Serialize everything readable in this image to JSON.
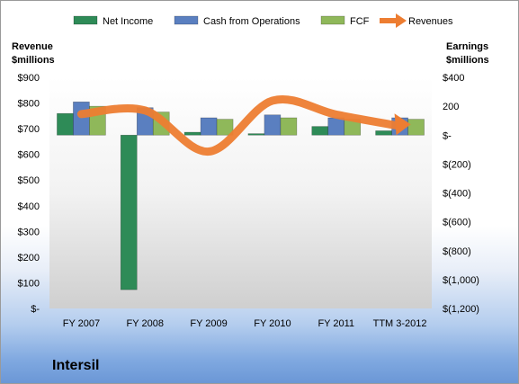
{
  "chart_data": {
    "type": "bar",
    "company": "Intersil",
    "categories": [
      "FY 2007",
      "FY 2008",
      "FY 2009",
      "FY 2010",
      "FY 2011",
      "TTM 3-2012"
    ],
    "left_axis": {
      "title_line1": "Revenue",
      "title_line2": "$millions",
      "min": 0,
      "max": 900,
      "step": 100,
      "tick_labels": [
        "$-",
        "$100",
        "$200",
        "$300",
        "$400",
        "$500",
        "$600",
        "$700",
        "$800",
        "$900"
      ]
    },
    "right_axis": {
      "title_line1": "Earnings",
      "title_line2": "$millions",
      "min": -1200,
      "max": 400,
      "step": 200,
      "tick_labels": [
        "$(1,200)",
        "$(1,000)",
        "$(800)",
        "$(600)",
        "$(400)",
        "$(200)",
        "$-",
        "200",
        "$400"
      ]
    },
    "series": [
      {
        "name": "Net Income",
        "type": "bar",
        "axis": "right",
        "color": "#2e8b57",
        "values": [
          150,
          -1070,
          20,
          10,
          60,
          30
        ]
      },
      {
        "name": "Cash from Operations",
        "type": "bar",
        "axis": "right",
        "color": "#5a7fc0",
        "values": [
          230,
          190,
          120,
          140,
          120,
          120
        ]
      },
      {
        "name": "FCF",
        "type": "bar",
        "axis": "right",
        "color": "#8fb85a",
        "values": [
          200,
          160,
          110,
          120,
          110,
          110
        ]
      },
      {
        "name": "Revenues",
        "type": "line",
        "axis": "left",
        "color": "#ed7d31",
        "values": [
          757,
          771,
          611,
          809,
          755,
          710
        ]
      }
    ],
    "legend_position": "top",
    "grid": false
  }
}
